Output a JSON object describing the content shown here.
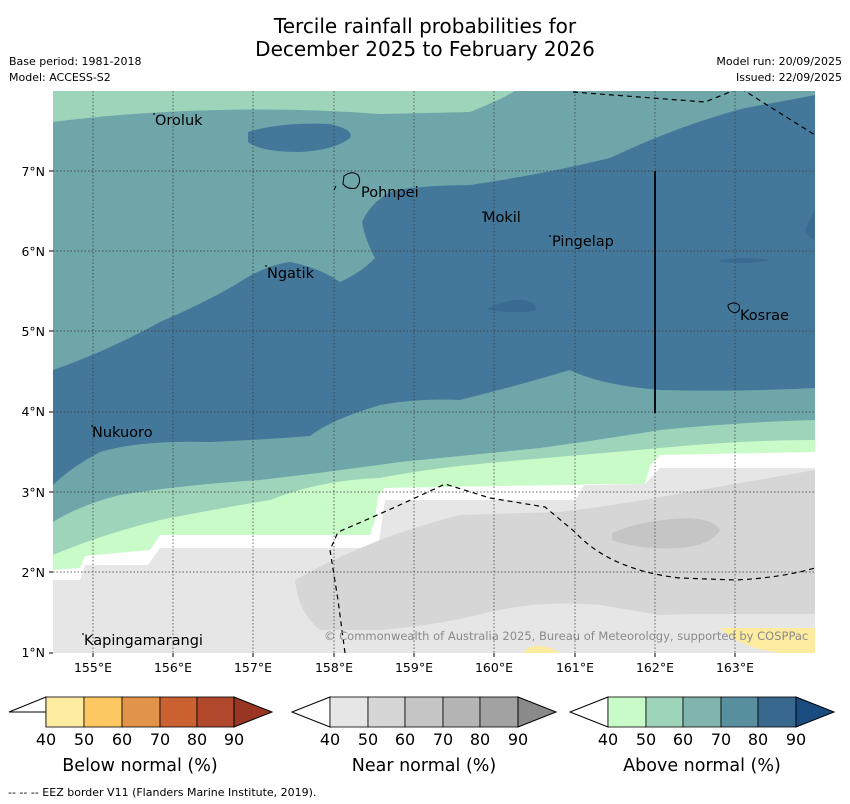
{
  "title_line1": "Tercile rainfall probabilities for",
  "title_line2": "December 2025 to February 2026",
  "base_period": "Base period: 1981-2018",
  "model": "Model: ACCESS-S2",
  "model_run": "Model run: 20/09/2025",
  "issued": "Issued: 22/09/2025",
  "lat_labels": [
    "7°N",
    "6°N",
    "5°N",
    "4°N",
    "3°N",
    "2°N",
    "1°N"
  ],
  "lon_labels": [
    "155°E",
    "156°E",
    "157°E",
    "158°E",
    "159°E",
    "160°E",
    "161°E",
    "162°E",
    "163°E"
  ],
  "places": {
    "oroluk": "Oroluk",
    "pohnpei": "Pohnpei",
    "mokil": "Mokil",
    "pingelap": "Pingelap",
    "ngatik": "Ngatik",
    "kosrae": "Kosrae",
    "nukuoro": "Nukuoro",
    "kapingamarangi": "Kapingamarangi"
  },
  "copyright": "© Commonwealth of Australia 2025, Bureau of Meteorology, supported by COSPPac",
  "colorbars": {
    "below": {
      "title": "Below normal (%)",
      "ticks": [
        "40",
        "50",
        "60",
        "70",
        "80",
        "90"
      ],
      "colors": [
        "#ffffff",
        "#fdeb9f",
        "#fdc761",
        "#e3944b",
        "#cb6131",
        "#b1482c",
        "#983623"
      ]
    },
    "near": {
      "title": "Near normal (%)",
      "ticks": [
        "40",
        "50",
        "60",
        "70",
        "80",
        "90"
      ],
      "colors": [
        "#ffffff",
        "#e6e6e6",
        "#d6d6d6",
        "#c5c5c5",
        "#b4b4b4",
        "#a2a2a2",
        "#8a8a8a"
      ]
    },
    "above": {
      "title": "Above normal (%)",
      "ticks": [
        "40",
        "50",
        "60",
        "70",
        "80",
        "90"
      ],
      "colors": [
        "#ffffff",
        "#c9fbc9",
        "#9ed4b9",
        "#81b4ae",
        "#578f9f",
        "#38688e",
        "#1b4c80"
      ]
    }
  },
  "footnote": "--  --  -- EEZ border V11 (Flanders Marine Institute, 2019)."
}
